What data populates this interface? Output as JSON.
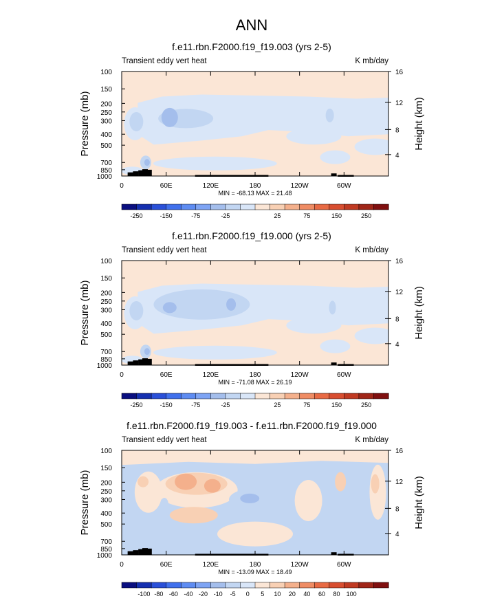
{
  "main_title": "ANN",
  "palette": {
    "blues": [
      "#0a0f80",
      "#1530b0",
      "#2a50d8",
      "#4070ec",
      "#5e8cf2",
      "#7ea4f4",
      "#a4beec",
      "#c2d6f2",
      "#d9e6f8"
    ],
    "reds": [
      "#fbe6d6",
      "#f8d0b4",
      "#f4b08c",
      "#ef8c64",
      "#e86a44",
      "#d84e30",
      "#c03a22",
      "#a02618",
      "#801010"
    ]
  },
  "chart_data": [
    {
      "type": "heatmap",
      "title": "f.e11.rbn.F2000.f19_f19.003 (yrs 2-5)",
      "left_label": "Transient eddy vert heat",
      "right_label": "K mb/day",
      "ylabel": "Pressure (mb)",
      "y2label": "Height (km)",
      "y_ticks": [
        "100",
        "150",
        "200",
        "250",
        "300",
        "400",
        "500",
        "700",
        "850",
        "1000"
      ],
      "y2_ticks": [
        "16",
        "12",
        "8",
        "4"
      ],
      "x_ticks": [
        "0",
        "60E",
        "120E",
        "180",
        "120W",
        "60W"
      ],
      "stats": "MIN = -68.13  MAX = 21.48",
      "colorbar_labels": [
        "-250",
        "-150",
        "-75",
        "-25",
        "25",
        "75",
        "150",
        "250"
      ]
    },
    {
      "type": "heatmap",
      "title": "f.e11.rbn.F2000.f19_f19.000 (yrs 2-5)",
      "left_label": "Transient eddy vert heat",
      "right_label": "K mb/day",
      "ylabel": "Pressure (mb)",
      "y2label": "Height (km)",
      "y_ticks": [
        "100",
        "150",
        "200",
        "250",
        "300",
        "400",
        "500",
        "700",
        "850",
        "1000"
      ],
      "y2_ticks": [
        "16",
        "12",
        "8",
        "4"
      ],
      "x_ticks": [
        "0",
        "60E",
        "120E",
        "180",
        "120W",
        "60W"
      ],
      "stats": "MIN = -71.08  MAX = 26.19",
      "colorbar_labels": [
        "-250",
        "-150",
        "-75",
        "-25",
        "25",
        "75",
        "150",
        "250"
      ]
    },
    {
      "type": "heatmap",
      "title": "f.e11.rbn.F2000.f19_f19.003 - f.e11.rbn.F2000.f19_f19.000",
      "left_label": "Transient eddy vert heat",
      "right_label": "K mb/day",
      "ylabel": "Pressure (mb)",
      "y2label": "Height (km)",
      "y_ticks": [
        "100",
        "150",
        "200",
        "250",
        "300",
        "400",
        "500",
        "700",
        "850",
        "1000"
      ],
      "y2_ticks": [
        "16",
        "12",
        "8",
        "4"
      ],
      "x_ticks": [
        "0",
        "60E",
        "120E",
        "180",
        "120W",
        "60W"
      ],
      "stats": "MIN = -13.09  MAX = 18.49",
      "colorbar_labels": [
        "-100",
        "-80",
        "-60",
        "-40",
        "-20",
        "-10",
        "-5",
        "0",
        "5",
        "10",
        "20",
        "40",
        "60",
        "80",
        "100"
      ]
    }
  ]
}
